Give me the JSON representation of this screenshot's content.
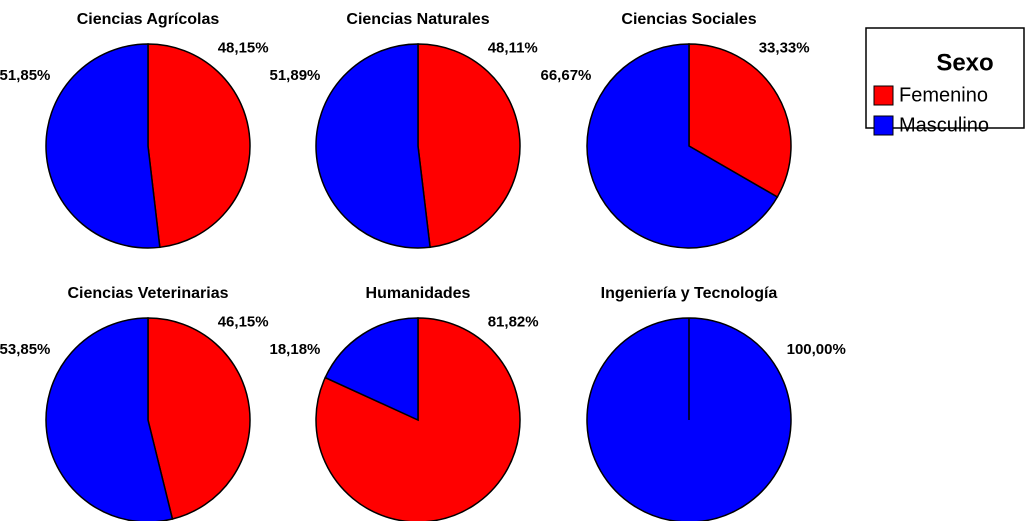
{
  "chart_data": [
    {
      "type": "pie",
      "title": "Ciencias Agrícolas",
      "values": [
        48.15,
        51.85
      ],
      "value_labels": [
        "48,15%",
        "51,85%"
      ],
      "colors": [
        "#ff0000",
        "#0000ff"
      ]
    },
    {
      "type": "pie",
      "title": "Ciencias Naturales",
      "values": [
        48.11,
        51.89
      ],
      "value_labels": [
        "48,11%",
        "51,89%"
      ],
      "colors": [
        "#ff0000",
        "#0000ff"
      ]
    },
    {
      "type": "pie",
      "title": "Ciencias Sociales",
      "values": [
        33.33,
        66.67
      ],
      "value_labels": [
        "33,33%",
        "66,67%"
      ],
      "colors": [
        "#ff0000",
        "#0000ff"
      ]
    },
    {
      "type": "pie",
      "title": "Ciencias Veterinarias",
      "values": [
        46.15,
        53.85
      ],
      "value_labels": [
        "46,15%",
        "53,85%"
      ],
      "colors": [
        "#ff0000",
        "#0000ff"
      ]
    },
    {
      "type": "pie",
      "title": "Humanidades",
      "values": [
        81.82,
        18.18
      ],
      "value_labels": [
        "81,82%",
        "18,18%"
      ],
      "colors": [
        "#ff0000",
        "#0000ff"
      ]
    },
    {
      "type": "pie",
      "title": "Ingeniería y Tecnología",
      "values": [
        0,
        100
      ],
      "value_labels": [
        null,
        "100,00%"
      ],
      "colors": [
        "#ff0000",
        "#0000ff"
      ]
    }
  ],
  "legend": {
    "title": "Sexo",
    "entries": [
      {
        "name": "Femenino",
        "color": "#ff0000"
      },
      {
        "name": "Masculino",
        "color": "#0000ff"
      }
    ]
  }
}
